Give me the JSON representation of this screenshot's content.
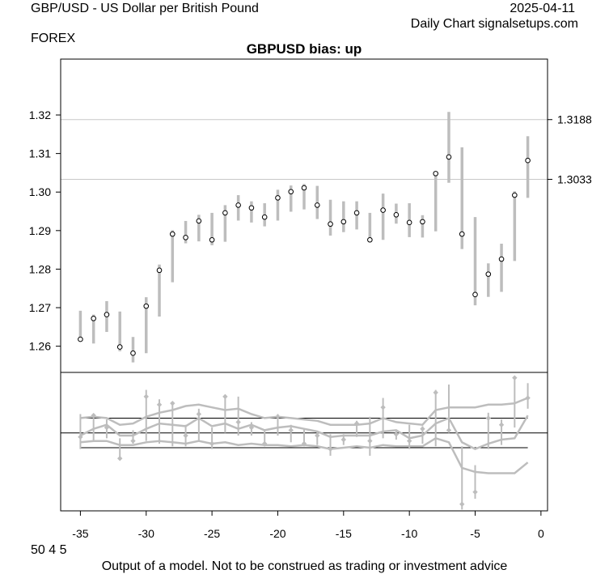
{
  "header": {
    "instrument": "GBP/USD - US Dollar per British Pound",
    "date": "2025-04-11",
    "source": "Daily Chart signalsetups.com",
    "market": "FOREX"
  },
  "footer": {
    "code": "50 4 5",
    "disclaimer": "Output of a model. Not to be construed as trading or investment advice"
  },
  "chart_data": {
    "type": "line",
    "title": "GBPUSD bias: up",
    "x_ticks": [
      -35,
      -30,
      -25,
      -20,
      -15,
      -10,
      -5,
      0
    ],
    "y_ticks": [
      1.26,
      1.27,
      1.28,
      1.29,
      1.3,
      1.31,
      1.32
    ],
    "xlim": [
      -36.5,
      0.5
    ],
    "ylim": [
      1.2532,
      1.3345
    ],
    "reference_levels": [
      {
        "value": 1.3188,
        "label": "1.3188"
      },
      {
        "value": 1.3033,
        "label": "1.3033"
      }
    ],
    "price_ranges": [
      {
        "x": -35,
        "low": 1.2612,
        "high": 1.2692,
        "close": 1.2618
      },
      {
        "x": -34,
        "low": 1.2607,
        "high": 1.2682,
        "close": 1.2672
      },
      {
        "x": -33,
        "low": 1.2637,
        "high": 1.2717,
        "close": 1.2682
      },
      {
        "x": -32,
        "low": 1.2587,
        "high": 1.269,
        "close": 1.2598
      },
      {
        "x": -31,
        "low": 1.2558,
        "high": 1.2624,
        "close": 1.2582
      },
      {
        "x": -30,
        "low": 1.2582,
        "high": 1.2727,
        "close": 1.2704
      },
      {
        "x": -29,
        "low": 1.2677,
        "high": 1.2812,
        "close": 1.2797
      },
      {
        "x": -28,
        "low": 1.2766,
        "high": 1.2901,
        "close": 1.2891
      },
      {
        "x": -27,
        "low": 1.2867,
        "high": 1.2925,
        "close": 1.2882
      },
      {
        "x": -26,
        "low": 1.2872,
        "high": 1.2941,
        "close": 1.2925
      },
      {
        "x": -25,
        "low": 1.2862,
        "high": 1.2946,
        "close": 1.2876
      },
      {
        "x": -24,
        "low": 1.2871,
        "high": 1.2966,
        "close": 1.2946
      },
      {
        "x": -23,
        "low": 1.2926,
        "high": 1.2992,
        "close": 1.2966
      },
      {
        "x": -22,
        "low": 1.2921,
        "high": 1.2976,
        "close": 1.2959
      },
      {
        "x": -21,
        "low": 1.2911,
        "high": 1.2971,
        "close": 1.2935
      },
      {
        "x": -20,
        "low": 1.2926,
        "high": 1.3006,
        "close": 1.2985
      },
      {
        "x": -19,
        "low": 1.2949,
        "high": 1.3017,
        "close": 1.3001
      },
      {
        "x": -18,
        "low": 1.2955,
        "high": 1.3021,
        "close": 1.3011
      },
      {
        "x": -17,
        "low": 1.293,
        "high": 1.3016,
        "close": 1.2966
      },
      {
        "x": -16,
        "low": 1.2887,
        "high": 1.298,
        "close": 1.2917
      },
      {
        "x": -15,
        "low": 1.2896,
        "high": 1.2976,
        "close": 1.2923
      },
      {
        "x": -14,
        "low": 1.2903,
        "high": 1.2976,
        "close": 1.2946
      },
      {
        "x": -13,
        "low": 1.2871,
        "high": 1.2946,
        "close": 1.2876
      },
      {
        "x": -12,
        "low": 1.2876,
        "high": 1.2996,
        "close": 1.2953
      },
      {
        "x": -11,
        "low": 1.2918,
        "high": 1.297,
        "close": 1.2941
      },
      {
        "x": -10,
        "low": 1.2883,
        "high": 1.2971,
        "close": 1.2921
      },
      {
        "x": -9,
        "low": 1.2882,
        "high": 1.294,
        "close": 1.2923
      },
      {
        "x": -8,
        "low": 1.2898,
        "high": 1.3051,
        "close": 1.3048
      },
      {
        "x": -7,
        "low": 1.3024,
        "high": 1.3208,
        "close": 1.3091
      },
      {
        "x": -6,
        "low": 1.2852,
        "high": 1.3116,
        "close": 1.2891
      },
      {
        "x": -5,
        "low": 1.2706,
        "high": 1.2935,
        "close": 1.2734
      },
      {
        "x": -4,
        "low": 1.2728,
        "high": 1.2815,
        "close": 1.2787
      },
      {
        "x": -3,
        "low": 1.2741,
        "high": 1.2866,
        "close": 1.2826
      },
      {
        "x": -2,
        "low": 1.2821,
        "high": 1.3002,
        "close": 1.2992
      },
      {
        "x": -1,
        "low": 1.2985,
        "high": 1.3145,
        "close": 1.3082
      }
    ],
    "indicator": {
      "ylim": [
        -2.9,
        2.25
      ],
      "zero_line": 0,
      "bands": [
        {
          "x": [
            -35,
            -1
          ],
          "y": [
            0.55,
            0.55
          ]
        },
        {
          "x": [
            -35,
            -1
          ],
          "y": [
            -0.55,
            -0.55
          ]
        }
      ],
      "bars": [
        {
          "x": -35,
          "low": -0.6,
          "high": 0.7,
          "point": -0.15
        },
        {
          "x": -34,
          "low": -0.3,
          "high": 0.7,
          "point": 0.65
        },
        {
          "x": -33,
          "low": -0.2,
          "high": 0.5,
          "point": 0.2
        },
        {
          "x": -32,
          "low": -0.95,
          "high": -0.2,
          "point": -0.95
        },
        {
          "x": -31,
          "low": -0.4,
          "high": 0.1,
          "point": -0.3
        },
        {
          "x": -30,
          "low": -0.3,
          "high": 1.6,
          "point": 1.35
        },
        {
          "x": -29,
          "low": -0.4,
          "high": 1.25,
          "point": 1.05
        },
        {
          "x": -28,
          "low": -0.5,
          "high": 1.1,
          "point": 1.1
        },
        {
          "x": -27,
          "low": -0.5,
          "high": 0.3,
          "point": -0.1
        },
        {
          "x": -26,
          "low": -0.3,
          "high": 0.9,
          "point": 0.7
        },
        {
          "x": -25,
          "low": -0.6,
          "high": 0.2,
          "point": -0.4
        },
        {
          "x": -24,
          "low": 0.0,
          "high": 1.4,
          "point": 1.35
        },
        {
          "x": -23,
          "low": -0.1,
          "high": 1.35,
          "point": 0.4
        },
        {
          "x": -22,
          "low": -0.1,
          "high": 0.4,
          "point": 0.2
        },
        {
          "x": -21,
          "low": -0.5,
          "high": 0.1,
          "point": -0.4
        },
        {
          "x": -20,
          "low": -0.1,
          "high": 0.7,
          "point": 0.6
        },
        {
          "x": -19,
          "low": -0.35,
          "high": 0.3,
          "point": 0.1
        },
        {
          "x": -18,
          "low": -0.5,
          "high": 0.15,
          "point": -0.4
        },
        {
          "x": -17,
          "low": -0.45,
          "high": 0.05,
          "point": -0.1
        },
        {
          "x": -16,
          "low": -0.85,
          "high": -0.05,
          "point": -0.6
        },
        {
          "x": -15,
          "low": -0.45,
          "high": -0.05,
          "point": -0.25
        },
        {
          "x": -14,
          "low": -0.15,
          "high": 0.45,
          "point": 0.35
        },
        {
          "x": -13,
          "low": -0.85,
          "high": 0.6,
          "point": -0.3
        },
        {
          "x": -12,
          "low": -0.2,
          "high": 1.3,
          "point": 0.95
        },
        {
          "x": -11,
          "low": -0.25,
          "high": 0.1,
          "point": -0.05
        },
        {
          "x": -10,
          "low": -0.6,
          "high": 0.3,
          "point": -0.3
        },
        {
          "x": -9,
          "low": -0.4,
          "high": 0.25,
          "point": 0.15
        },
        {
          "x": -8,
          "low": -0.5,
          "high": 1.6,
          "point": 1.5
        },
        {
          "x": -7,
          "low": 0.0,
          "high": 1.8,
          "point": 0.1
        },
        {
          "x": -6,
          "low": -2.85,
          "high": -0.5,
          "point": -2.65
        },
        {
          "x": -5,
          "low": -2.45,
          "high": -1.2,
          "point": -2.2
        },
        {
          "x": -4,
          "low": -0.6,
          "high": 0.75,
          "point": 0.55
        },
        {
          "x": -3,
          "low": -0.45,
          "high": 0.5,
          "point": 0.3
        },
        {
          "x": -2,
          "low": 0.2,
          "high": 2.05,
          "point": 2.05
        },
        {
          "x": -1,
          "low": 0.9,
          "high": 1.85,
          "point": 1.3
        }
      ],
      "upper_curve": {
        "x": [
          -35,
          -34,
          -33,
          -32,
          -31,
          -30,
          -29,
          -28,
          -27,
          -26,
          -25,
          -24,
          -23,
          -22,
          -21,
          -20,
          -19,
          -18,
          -17,
          -16,
          -15,
          -14,
          -13,
          -12,
          -11,
          -10,
          -9,
          -8,
          -7,
          -6,
          -5,
          -4,
          -3,
          -2,
          -1
        ],
        "y": [
          0.55,
          0.6,
          0.55,
          0.3,
          0.35,
          0.6,
          0.75,
          0.85,
          1.0,
          1.05,
          0.95,
          0.85,
          0.9,
          0.7,
          0.55,
          0.6,
          0.55,
          0.5,
          0.45,
          0.3,
          0.3,
          0.3,
          0.35,
          0.55,
          0.4,
          0.35,
          0.3,
          0.85,
          0.95,
          0.95,
          0.95,
          1.05,
          1.05,
          1.1,
          1.3
        ]
      },
      "middle_curve": {
        "x": [
          -35,
          -34,
          -33,
          -32,
          -31,
          -30,
          -29,
          -28,
          -27,
          -26,
          -25,
          -24,
          -23,
          -22,
          -21,
          -20,
          -19,
          -18,
          -17,
          -16,
          -15,
          -14,
          -13,
          -12,
          -11,
          -10,
          -9,
          -8,
          -7,
          -6,
          -5,
          -4,
          -3,
          -2,
          -1
        ],
        "y": [
          -0.1,
          0.15,
          0.3,
          -0.1,
          -0.1,
          0.15,
          0.35,
          0.3,
          0.25,
          0.55,
          0.25,
          0.35,
          0.15,
          0.3,
          0.1,
          0.2,
          0.25,
          0.15,
          0.05,
          -0.15,
          -0.1,
          -0.1,
          -0.1,
          0.05,
          0.1,
          -0.2,
          -0.1,
          0.35,
          0.55,
          -0.35,
          -0.6,
          -0.4,
          -0.25,
          -0.2,
          0.65
        ]
      },
      "lower_curve": {
        "x": [
          -35,
          -34,
          -33,
          -32,
          -31,
          -30,
          -29,
          -28,
          -27,
          -26,
          -25,
          -24,
          -23,
          -22,
          -21,
          -20,
          -19,
          -18,
          -17,
          -16,
          -15,
          -14,
          -13,
          -12,
          -11,
          -10,
          -9,
          -8,
          -7,
          -6,
          -5,
          -4,
          -3,
          -2,
          -1
        ],
        "y": [
          -0.35,
          -0.3,
          -0.3,
          -0.45,
          -0.45,
          -0.35,
          -0.3,
          -0.35,
          -0.4,
          -0.3,
          -0.4,
          -0.35,
          -0.45,
          -0.4,
          -0.45,
          -0.45,
          -0.5,
          -0.45,
          -0.5,
          -0.6,
          -0.55,
          -0.5,
          -0.55,
          -0.45,
          -0.5,
          -0.5,
          -0.5,
          -0.2,
          -0.35,
          -1.3,
          -1.45,
          -1.5,
          -1.5,
          -1.5,
          -1.1
        ]
      }
    }
  }
}
